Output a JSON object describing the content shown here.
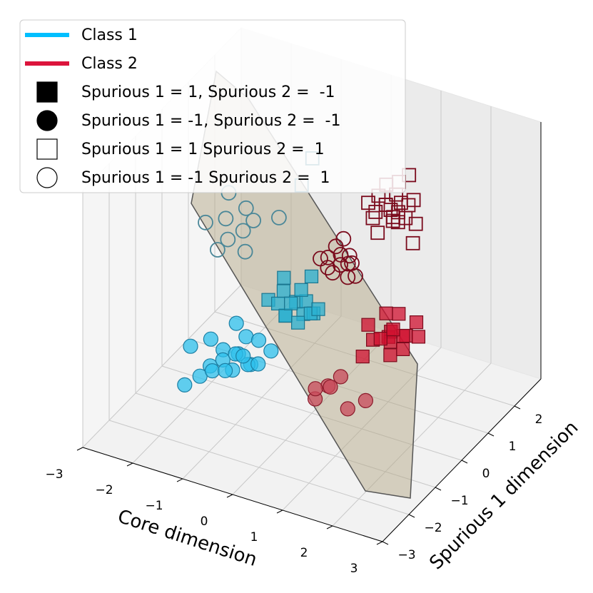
{
  "chart_data": {
    "type": "scatter3d",
    "x_label": "Core dimension",
    "y_label": "Spurious 1 dimension",
    "xlim": [
      -3,
      3
    ],
    "ylim": [
      -3,
      3
    ],
    "zlim": [
      -2,
      2
    ],
    "xticks": [
      {
        "value": -3,
        "label": "−3"
      },
      {
        "value": -2,
        "label": "−2"
      },
      {
        "value": -1,
        "label": "−1"
      },
      0,
      1,
      2,
      3
    ],
    "yticks": [
      {
        "value": -3,
        "label": "−3"
      },
      {
        "value": -2,
        "label": "−2"
      },
      {
        "value": -1,
        "label": "−1"
      },
      0,
      1,
      2
    ],
    "grid": true,
    "legend": [
      {
        "label": "Class 1",
        "symbol": "line",
        "color": "#00bfff"
      },
      {
        "label": "Class 2",
        "symbol": "line",
        "color": "#dc143c"
      },
      {
        "label": "Spurious 1 = 1, Spurious 2 =  -1",
        "symbol": "square",
        "filled": true,
        "color": "#000000"
      },
      {
        "label": "Spurious 1 = -1, Spurious 2 =  -1",
        "symbol": "circle",
        "filled": true,
        "color": "#000000"
      },
      {
        "label": "Spurious 1 = 1 Spurious 2 =  1",
        "symbol": "square",
        "filled": false,
        "color": "#000000"
      },
      {
        "label": "Spurious 1 = -1 Spurious 2 =  1",
        "symbol": "circle",
        "filled": false,
        "color": "#000000"
      }
    ],
    "series": [
      {
        "marker": "circle",
        "filled": true,
        "color": "#2ec0ec",
        "edgecolor": "#1b7ea3",
        "x": [
          -1.9,
          -1.6,
          -1.4,
          -1.3,
          -1.2,
          -1.1,
          -1.0,
          -0.9,
          -0.8,
          -0.7,
          -1.5,
          -1.2,
          -1.0,
          -0.8,
          -0.6,
          -1.3,
          -1.1,
          -0.9,
          -1.7,
          -0.5
        ],
        "y": [
          -1.0,
          -0.8,
          -1.2,
          -0.9,
          -1.1,
          -0.7,
          -1.0,
          -1.3,
          -0.8,
          -1.1,
          -1.4,
          -1.5,
          -0.6,
          -0.5,
          -0.9,
          -0.4,
          -1.2,
          -0.9,
          -1.6,
          -0.6
        ],
        "z": [
          -1.0,
          -0.9,
          -1.1,
          -0.95,
          -1.0,
          -1.05,
          -0.9,
          -1.0,
          -1.1,
          -0.95,
          -1.2,
          -1.0,
          -0.8,
          -0.85,
          -1.0,
          -0.75,
          -1.1,
          -0.95,
          -1.3,
          -0.9
        ]
      },
      {
        "marker": "square",
        "filled": true,
        "color": "#2ab0d0",
        "edgecolor": "#1a7690",
        "x": [
          -1.4,
          -1.2,
          -1.0,
          -0.9,
          -0.8,
          -0.7,
          -1.1,
          -0.9,
          -0.6,
          -0.5,
          -1.3,
          -0.8,
          -1.0,
          -0.7,
          -0.4,
          -0.9
        ],
        "y": [
          1.0,
          1.2,
          0.9,
          1.1,
          1.3,
          1.0,
          0.8,
          0.7,
          1.2,
          0.9,
          1.4,
          1.5,
          1.1,
          0.8,
          1.0,
          1.3
        ],
        "z": [
          -1.0,
          -0.9,
          -1.1,
          -0.95,
          -1.0,
          -1.05,
          -0.9,
          -1.0,
          -1.1,
          -0.95,
          -0.8,
          -0.7,
          -1.0,
          -1.1,
          -0.9,
          -0.85
        ]
      },
      {
        "marker": "square",
        "filled": true,
        "color": "#d0102f",
        "edgecolor": "#7a0a1c",
        "x": [
          0.6,
          0.8,
          0.9,
          1.0,
          1.1,
          1.2,
          1.3,
          1.4,
          0.7,
          1.0,
          1.2,
          1.5,
          0.9,
          1.1,
          1.3,
          0.8
        ],
        "y": [
          1.0,
          0.8,
          1.2,
          1.1,
          0.9,
          1.3,
          1.0,
          0.8,
          0.6,
          1.4,
          0.7,
          1.2,
          0.9,
          1.0,
          1.5,
          1.3
        ],
        "z": [
          -0.9,
          -1.0,
          -1.1,
          -0.95,
          -1.0,
          -1.05,
          -0.9,
          -1.0,
          -1.2,
          -0.8,
          -1.1,
          -0.95,
          -1.0,
          -0.85,
          -0.9,
          -0.8
        ]
      },
      {
        "marker": "circle",
        "filled": true,
        "color": "#c84a5a",
        "edgecolor": "#8a1a2a",
        "x": [
          0.7,
          0.8,
          1.0,
          0.9,
          1.3,
          1.5,
          0.6
        ],
        "y": [
          -1.2,
          -0.9,
          -0.8,
          -1.0,
          -1.1,
          -0.8,
          -1.0
        ],
        "z": [
          -1.1,
          -1.0,
          -0.85,
          -0.95,
          -1.15,
          -1.1,
          -1.05
        ]
      },
      {
        "marker": "circle",
        "filled": false,
        "color": "#4a8798",
        "edgecolor": "#4a8798",
        "x": [
          -1.6,
          -1.3,
          -1.1,
          -0.9,
          -0.8,
          -1.2,
          -1.0,
          -0.7,
          -1.4,
          -0.5
        ],
        "y": [
          -1.0,
          -0.8,
          -1.1,
          -0.9,
          -0.7,
          -1.3,
          -0.6,
          -1.2,
          -0.5,
          -0.3
        ],
        "z": [
          1.0,
          1.05,
          0.9,
          1.0,
          1.1,
          0.8,
          1.2,
          0.85,
          1.3,
          1.05
        ]
      },
      {
        "marker": "square",
        "filled": false,
        "color": "#1f6f85",
        "edgecolor": "#1f6f85",
        "x": [
          -0.92,
          -0.68
        ],
        "y": [
          1.76,
          0.9
        ],
        "z": [
          1,
          1
        ]
      },
      {
        "marker": "circle",
        "filled": false,
        "color": "#7a0a1c",
        "edgecolor": "#7a0a1c",
        "x": [
          0.7,
          0.8,
          0.9,
          1.0,
          1.1,
          1.2,
          1.3,
          0.85,
          1.05,
          1.15,
          1.25,
          0.95,
          1.4
        ],
        "y": [
          -1.0,
          -0.9,
          -1.1,
          -0.8,
          -1.0,
          -0.9,
          -1.1,
          -0.7,
          -1.2,
          -0.75,
          -0.85,
          -0.6,
          -1.0
        ],
        "z": [
          1.0,
          1.0,
          0.95,
          1.05,
          1.0,
          1.0,
          0.9,
          1.1,
          0.95,
          1.05,
          1.0,
          1.2,
          0.9
        ]
      },
      {
        "marker": "square",
        "filled": false,
        "color": "#7a0a1c",
        "edgecolor": "#7a0a1c",
        "x": [
          0.6,
          0.7,
          0.8,
          0.9,
          1.0,
          1.1,
          1.2,
          1.3,
          1.4,
          1.5,
          0.75,
          0.85,
          0.95,
          1.05,
          1.15,
          1.25,
          1.35,
          1.0,
          1.1,
          1.6,
          0.9,
          1.2
        ],
        "y": [
          1.0,
          1.2,
          0.9,
          1.1,
          1.3,
          1.0,
          0.8,
          1.2,
          0.9,
          1.1,
          1.4,
          0.7,
          1.5,
          1.0,
          1.2,
          0.9,
          1.3,
          0.6,
          1.6,
          0.8,
          1.1,
          1.0
        ],
        "z": [
          1.0,
          1.05,
          0.95,
          1.0,
          1.1,
          0.9,
          0.95,
          1.05,
          1.0,
          0.85,
          1.15,
          0.95,
          1.2,
          1.0,
          1.05,
          0.9,
          1.1,
          0.8,
          1.3,
          0.7,
          1.0,
          1.0
        ]
      }
    ]
  }
}
